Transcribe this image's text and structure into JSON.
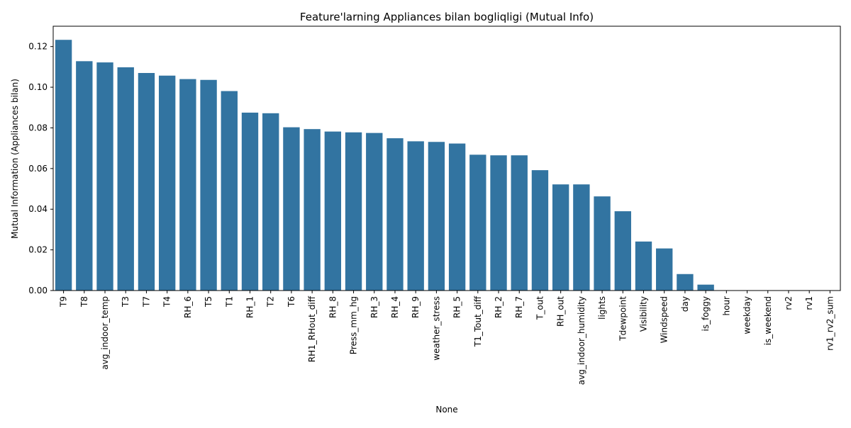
{
  "chart_data": {
    "type": "bar",
    "title": "Feature'larning Appliances bilan bogliqligi (Mutual Info)",
    "xlabel": "None",
    "ylabel": "Mutual Information (Appliances bilan)",
    "ylim": [
      0,
      0.13
    ],
    "yticks": [
      0.0,
      0.02,
      0.04,
      0.06,
      0.08,
      0.1,
      0.12
    ],
    "ytick_labels": [
      "0.00",
      "0.02",
      "0.04",
      "0.06",
      "0.08",
      "0.10",
      "0.12"
    ],
    "grid": false,
    "bar_color": "#3274a1",
    "categories": [
      "T9",
      "T8",
      "avg_indoor_temp",
      "T3",
      "T7",
      "T4",
      "RH_6",
      "T5",
      "T1",
      "RH_1",
      "T2",
      "T6",
      "RH1_RHout_diff",
      "RH_8",
      "Press_mm_hg",
      "RH_3",
      "RH_4",
      "RH_9",
      "weather_stress",
      "RH_5",
      "T1_Tout_diff",
      "RH_2",
      "RH_7",
      "T_out",
      "RH_out",
      "avg_indoor_humidity",
      "lights",
      "Tdewpoint",
      "Visibility",
      "Windspeed",
      "day",
      "is_foggy",
      "hour",
      "weekday",
      "is_weekend",
      "rv2",
      "rv1",
      "rv1_rv2_sum"
    ],
    "values": [
      0.1233,
      0.1128,
      0.1122,
      0.1098,
      0.107,
      0.1057,
      0.104,
      0.1036,
      0.0981,
      0.0875,
      0.0872,
      0.0803,
      0.0794,
      0.0782,
      0.0778,
      0.0775,
      0.0749,
      0.0734,
      0.0731,
      0.0723,
      0.0668,
      0.0665,
      0.0665,
      0.0592,
      0.0522,
      0.0522,
      0.0463,
      0.039,
      0.0241,
      0.0207,
      0.0081,
      0.0029,
      0,
      0,
      0,
      0,
      0,
      0
    ]
  }
}
